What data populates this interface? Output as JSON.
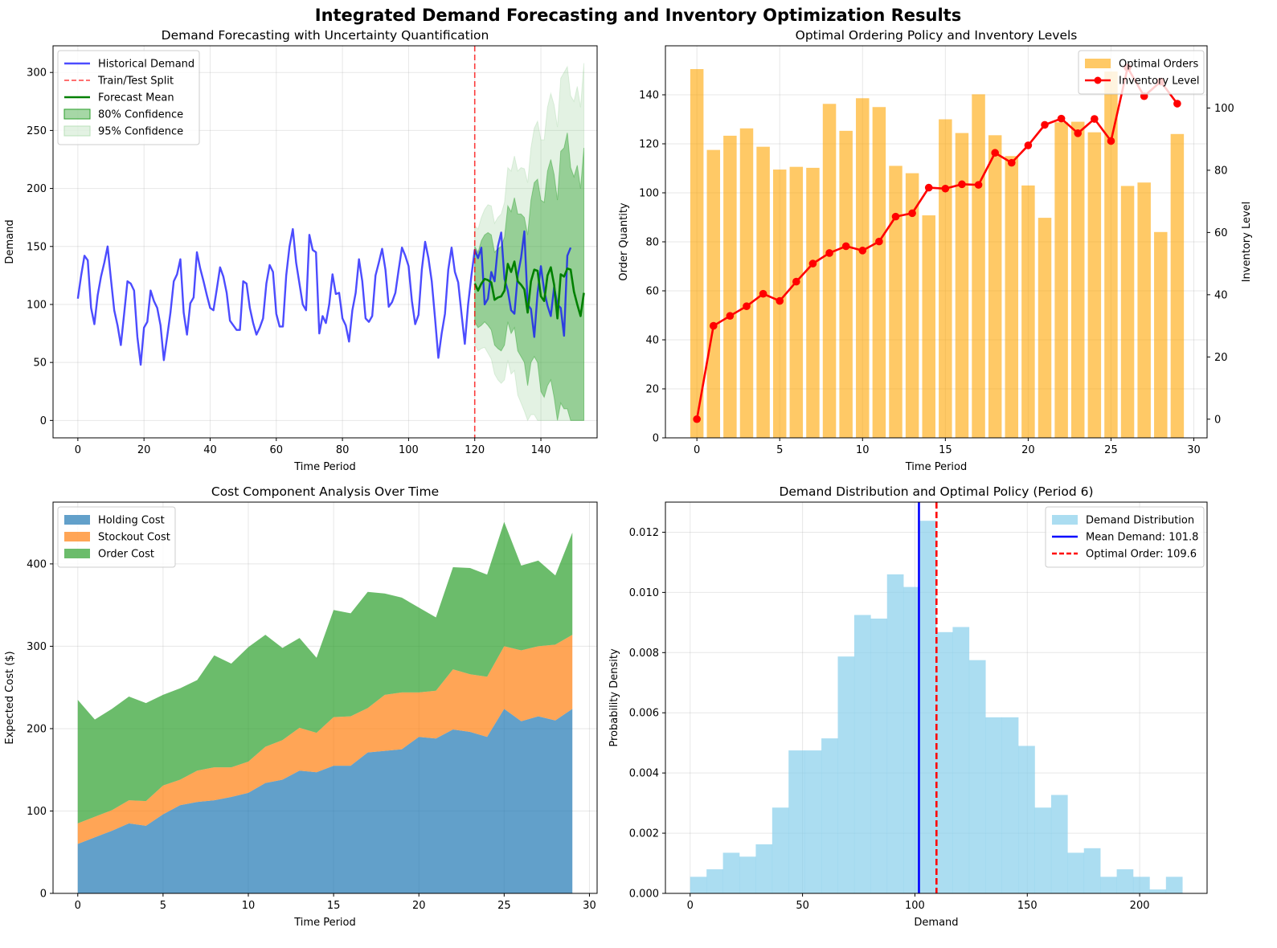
{
  "figure_title": "Integrated Demand Forecasting and Inventory Optimization Results",
  "chart_data": [
    {
      "type": "line",
      "title": "Demand Forecasting with Uncertainty Quantification",
      "xlabel": "Time Period",
      "ylabel": "Demand",
      "xlim": [
        -7.5,
        157
      ],
      "ylim": [
        -15,
        323
      ],
      "xticks": [
        0,
        20,
        40,
        60,
        80,
        100,
        120,
        140
      ],
      "yticks": [
        0,
        50,
        100,
        150,
        200,
        250,
        300
      ],
      "grid": true,
      "legend_position": "top-left",
      "split_index": 120,
      "historical_demand": [
        105,
        125,
        142,
        138,
        97,
        83,
        108,
        124,
        136,
        150,
        122,
        95,
        82,
        65,
        92,
        120,
        118,
        112,
        72,
        48,
        80,
        85,
        112,
        103,
        97,
        82,
        52,
        72,
        93,
        120,
        126,
        139,
        93,
        74,
        101,
        106,
        145,
        131,
        120,
        108,
        97,
        95,
        113,
        132,
        124,
        110,
        86,
        82,
        78,
        78,
        120,
        118,
        97,
        84,
        74,
        80,
        88,
        118,
        134,
        128,
        92,
        81,
        81,
        125,
        150,
        165,
        136,
        118,
        100,
        95,
        160,
        147,
        145,
        75,
        90,
        84,
        100,
        126,
        109,
        110,
        88,
        82,
        68,
        95,
        110,
        139,
        120,
        88,
        85,
        90,
        125,
        136,
        148,
        130,
        98,
        102,
        110,
        130,
        149,
        142,
        133,
        103,
        83,
        91,
        130,
        154,
        140,
        120,
        88,
        54,
        75,
        92,
        130,
        149,
        128,
        119,
        92,
        66,
        100,
        125,
        147
      ],
      "test_actual": [
        140,
        149,
        100,
        105,
        128,
        120,
        150,
        162,
        122,
        112,
        95,
        92,
        125,
        140,
        163,
        100,
        96,
        72,
        110,
        133,
        112,
        99,
        90,
        115,
        100,
        97,
        73,
        142,
        149
      ],
      "forecast_mean": [
        118,
        112,
        118,
        122,
        121,
        119,
        104,
        106,
        107,
        112,
        135,
        128,
        137,
        120,
        117,
        113,
        93,
        120,
        130,
        129,
        107,
        103,
        125,
        132,
        117,
        88,
        126,
        124,
        131,
        130,
        111,
        100,
        90,
        110
      ],
      "ci80_upper": [
        150,
        145,
        155,
        160,
        162,
        160,
        145,
        148,
        150,
        158,
        185,
        180,
        192,
        178,
        178,
        175,
        160,
        190,
        205,
        208,
        190,
        188,
        215,
        225,
        212,
        190,
        232,
        235,
        248,
        218,
        210,
        220,
        200,
        235
      ],
      "ci80_lower": [
        85,
        80,
        82,
        85,
        82,
        78,
        65,
        62,
        60,
        65,
        85,
        75,
        80,
        60,
        55,
        50,
        30,
        50,
        55,
        50,
        25,
        20,
        30,
        35,
        20,
        0,
        15,
        10,
        10,
        0,
        0,
        0,
        0,
        0
      ],
      "ci95_upper": [
        168,
        165,
        175,
        182,
        186,
        185,
        170,
        175,
        178,
        188,
        218,
        215,
        228,
        215,
        218,
        217,
        205,
        235,
        252,
        258,
        242,
        242,
        270,
        282,
        272,
        253,
        295,
        300,
        305,
        280,
        275,
        288,
        270,
        308
      ],
      "ci95_lower": [
        66,
        60,
        62,
        63,
        58,
        53,
        40,
        35,
        32,
        35,
        52,
        40,
        43,
        22,
        15,
        8,
        0,
        5,
        5,
        0,
        0,
        0,
        0,
        0,
        0,
        0,
        0,
        0,
        0,
        0,
        0,
        0,
        0,
        0
      ],
      "legend": [
        "Historical Demand",
        "Train/Test Split",
        "Forecast Mean",
        "80% Confidence",
        "95% Confidence"
      ],
      "colors": {
        "historical": "#0000ff",
        "split": "#ff0000",
        "forecast": "#008000",
        "ci80": "#2ca02c",
        "ci95": "#7fc47f"
      }
    },
    {
      "type": "bar",
      "title": "Optimal Ordering Policy and Inventory Levels",
      "xlabel": "Time Period",
      "ylabel": "Order Quantity",
      "y2label": "Inventory Level",
      "xlim": [
        -1.9,
        30.8
      ],
      "ylim": [
        0,
        160
      ],
      "y2lim": [
        -6,
        120
      ],
      "xticks": [
        0,
        5,
        10,
        15,
        20,
        25,
        30
      ],
      "yticks": [
        0,
        20,
        40,
        60,
        80,
        100,
        120,
        140
      ],
      "y2ticks": [
        0,
        20,
        40,
        60,
        80,
        100
      ],
      "grid": true,
      "legend_position": "top-right",
      "x": [
        0,
        1,
        2,
        3,
        4,
        5,
        6,
        7,
        8,
        9,
        10,
        11,
        12,
        13,
        14,
        15,
        16,
        17,
        18,
        19,
        20,
        21,
        22,
        23,
        24,
        25,
        26,
        27,
        28,
        29
      ],
      "series": [
        {
          "name": "Optimal Orders",
          "axis": "left",
          "values": [
            150.5,
            117.5,
            123.3,
            126.3,
            118.8,
            109.5,
            110.6,
            110.2,
            136.3,
            125.3,
            138.6,
            135,
            111,
            108,
            90.8,
            130,
            124.4,
            140.2,
            123.5,
            115,
            103,
            89.8,
            128.8,
            129,
            124.7,
            149.5,
            102.8,
            104.2,
            84,
            124
          ]
        },
        {
          "name": "Inventory Level",
          "axis": "right",
          "values": [
            0,
            30,
            33.2,
            36.3,
            40.3,
            38,
            44.2,
            50,
            53.4,
            55.6,
            54.2,
            57.1,
            65.1,
            66.2,
            74.4,
            74.1,
            75.5,
            75.3,
            85.6,
            82.4,
            88,
            94.6,
            96.6,
            91.9,
            96.5,
            89.4,
            113,
            103.8,
            108.5,
            101.4
          ]
        }
      ],
      "colors": {
        "orders": "#ffa500",
        "inventory": "#ff0000"
      }
    },
    {
      "type": "area",
      "title": "Cost Component Analysis Over Time",
      "xlabel": "Time Period",
      "ylabel": "Expected Cost ($)",
      "xlim": [
        -1.45,
        30.45
      ],
      "ylim": [
        0,
        475
      ],
      "xticks": [
        0,
        5,
        10,
        15,
        20,
        25,
        30
      ],
      "yticks": [
        0,
        100,
        200,
        300,
        400
      ],
      "grid": true,
      "legend_position": "top-left",
      "x": [
        0,
        1,
        2,
        3,
        4,
        5,
        6,
        7,
        8,
        9,
        10,
        11,
        12,
        13,
        14,
        15,
        16,
        17,
        18,
        19,
        20,
        21,
        22,
        23,
        24,
        25,
        26,
        27,
        28,
        29
      ],
      "series": [
        {
          "name": "Holding Cost",
          "values": [
            60,
            68,
            76,
            85,
            82,
            96,
            107,
            111,
            113,
            117,
            122,
            134,
            138,
            149,
            147,
            155,
            155,
            171,
            173,
            175,
            190,
            188,
            199,
            196,
            190,
            224,
            209,
            215,
            210,
            224
          ]
        },
        {
          "name": "Stockout Cost",
          "values": [
            25,
            25,
            25,
            28,
            30,
            35,
            31,
            38,
            40,
            36,
            38,
            44,
            48,
            52,
            48,
            59,
            60,
            54,
            68,
            69,
            54,
            58,
            73,
            70,
            73,
            76,
            86,
            85,
            92,
            90
          ]
        },
        {
          "name": "Order Cost",
          "values": [
            150,
            118,
            123,
            126,
            119,
            110,
            111,
            110,
            136,
            126,
            139,
            136,
            112,
            109,
            91,
            130,
            125,
            141,
            123,
            115,
            103,
            89,
            124,
            129,
            124,
            151,
            103,
            104,
            84,
            124
          ]
        }
      ],
      "colors": [
        "#1f77b4",
        "#ff7f0e",
        "#2ca02c"
      ]
    },
    {
      "type": "bar",
      "title": "Demand Distribution and Optimal Policy (Period 6)",
      "xlabel": "Demand",
      "ylabel": "Probability Density",
      "xlim": [
        -11,
        230
      ],
      "ylim": [
        0,
        0.013
      ],
      "xticks": [
        0,
        50,
        100,
        150,
        200
      ],
      "yticks": [
        "0.000",
        "0.002",
        "0.004",
        "0.006",
        "0.008",
        "0.010",
        "0.012"
      ],
      "grid": true,
      "legend_position": "top-right",
      "bin_start": 0,
      "bin_width": 7.3,
      "densities": [
        0.00055,
        0.0008,
        0.00135,
        0.00122,
        0.00163,
        0.00285,
        0.00475,
        0.00475,
        0.00515,
        0.00787,
        0.00925,
        0.00913,
        0.0106,
        0.01018,
        0.01238,
        0.00868,
        0.00885,
        0.00775,
        0.00585,
        0.00585,
        0.0049,
        0.00285,
        0.00327,
        0.00135,
        0.0015,
        0.00055,
        0.0008,
        0.00055,
        0.00013,
        0.00055
      ],
      "mean_demand": 101.8,
      "optimal_order": 109.6,
      "legend": [
        "Demand Distribution",
        "Mean Demand: 101.8",
        "Optimal Order: 109.6"
      ],
      "colors": {
        "hist": "#87ceeb",
        "mean": "#0000ff",
        "order": "#ff0000"
      }
    }
  ]
}
